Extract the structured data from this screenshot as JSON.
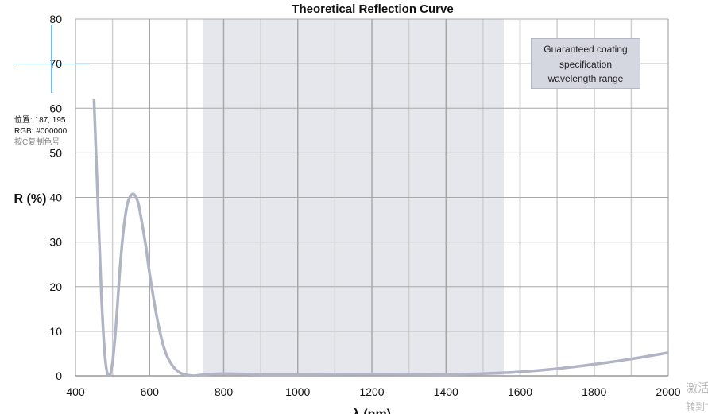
{
  "chart_data": {
    "type": "line",
    "title": "Theoretical Reflection Curve",
    "xlabel": "λ (nm)",
    "ylabel": "R (%)",
    "xlim": [
      400,
      2000
    ],
    "ylim": [
      0,
      80
    ],
    "xticks": [
      400,
      600,
      800,
      1000,
      1200,
      1400,
      1600,
      1800,
      2000
    ],
    "yticks": [
      0,
      10,
      20,
      30,
      40,
      50,
      60,
      70,
      80
    ],
    "grid": true,
    "shaded_range": {
      "x": [
        745,
        1556
      ],
      "label": "Guaranteed coating specification wavelength range",
      "color": "#e6e7ec"
    },
    "series": [
      {
        "color": "#b1b4c6",
        "x": [
          450,
          460,
          470,
          480,
          490,
          500,
          510,
          520,
          530,
          540,
          550,
          560,
          570,
          580,
          590,
          600,
          620,
          640,
          660,
          680,
          700,
          720,
          740,
          800,
          900,
          1000,
          1100,
          1200,
          1300,
          1400,
          1500,
          1600,
          1700,
          1800,
          1900,
          2000
        ],
        "y": [
          62,
          40,
          18,
          4,
          0,
          3,
          12,
          24,
          33,
          38.5,
          40.5,
          40.5,
          38.5,
          34,
          29,
          23,
          13,
          6,
          2.5,
          0.8,
          0.2,
          0,
          0.2,
          0.5,
          0.3,
          0.3,
          0.35,
          0.4,
          0.35,
          0.3,
          0.5,
          0.9,
          1.6,
          2.6,
          3.8,
          5.2
        ]
      }
    ]
  },
  "legend_lines": [
    "Guaranteed coating",
    "specification",
    "wavelength range"
  ],
  "overlay": {
    "position_label": "位置: 187, 195",
    "rgb_label": "RGB: #000000",
    "hint": "按C复制色号"
  },
  "watermark": {
    "line1": "激活 W",
    "line2": "转到\"设"
  }
}
